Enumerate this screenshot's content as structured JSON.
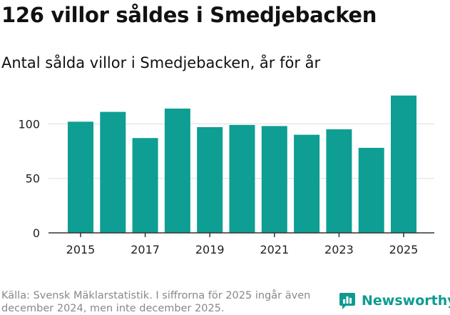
{
  "title": "126 villor såldes i Smedjebacken",
  "subtitle": "Antal sålda villor i Smedjebacken, år för år",
  "source": "Källa: Svensk Mäklarstatistik. I siffrorna för 2025 ingår även december 2024, men inte december 2025.",
  "brand": "Newsworthy",
  "colors": {
    "bar": "#0e9e93",
    "grid": "#dddddd",
    "axis": "#333333",
    "brand": "#0e9b91"
  },
  "chart_data": {
    "type": "bar",
    "title": "126 villor såldes i Smedjebacken",
    "subtitle": "Antal sålda villor i Smedjebacken, år för år",
    "xlabel": "",
    "ylabel": "",
    "categories": [
      2015,
      2016,
      2017,
      2018,
      2019,
      2020,
      2021,
      2022,
      2023,
      2024,
      2025
    ],
    "values": [
      102,
      111,
      87,
      114,
      97,
      99,
      98,
      90,
      95,
      78,
      126
    ],
    "xticks": [
      "2015",
      "2017",
      "2019",
      "2021",
      "2023",
      "2025"
    ],
    "yticks": [
      0,
      50,
      100
    ],
    "ylim": [
      0,
      135
    ],
    "grid": true
  }
}
